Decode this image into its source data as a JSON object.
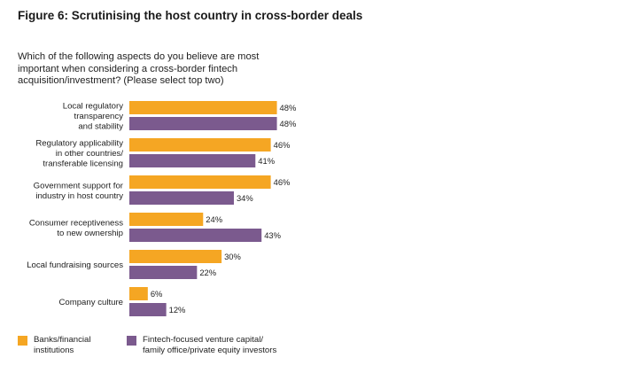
{
  "figure_title": "Figure 6: Scrutinising the host country in cross-border deals",
  "question_lines": [
    "Which of the following aspects do you believe are most",
    "important when considering a cross-border fintech",
    "acquisition/investment? (Please select top two)"
  ],
  "colors": {
    "series_a": "#F5A623",
    "series_b": "#7B5A8E"
  },
  "chart_data": {
    "type": "bar",
    "orientation": "horizontal",
    "categories": [
      [
        "Local regulatory",
        "transparency",
        "and stability"
      ],
      [
        "Regulatory applicability",
        "in other countries/",
        "transferable licensing"
      ],
      [
        "Government support for",
        "industry in host country"
      ],
      [
        "Consumer receptiveness",
        "to new ownership"
      ],
      [
        "Local fundraising sources"
      ],
      [
        "Company culture"
      ]
    ],
    "series": [
      {
        "name": "Banks/financial institutions",
        "legend_lines": [
          "Banks/financial",
          "institutions"
        ],
        "values": [
          48,
          46,
          46,
          24,
          30,
          6
        ],
        "labels": [
          "48%",
          "46%",
          "46%",
          "24%",
          "30%",
          "6%"
        ]
      },
      {
        "name": "Fintech-focused venture capital/family office/private equity investors",
        "legend_lines": [
          "Fintech-focused venture capital/",
          "family office/private equity investors"
        ],
        "values": [
          48,
          41,
          34,
          43,
          22,
          12
        ],
        "labels": [
          "48%",
          "41%",
          "34%",
          "43%",
          "22%",
          "12%"
        ]
      }
    ],
    "unit": "%",
    "xlim": [
      0,
      50
    ],
    "grid": false,
    "legend_position": "bottom-left"
  }
}
